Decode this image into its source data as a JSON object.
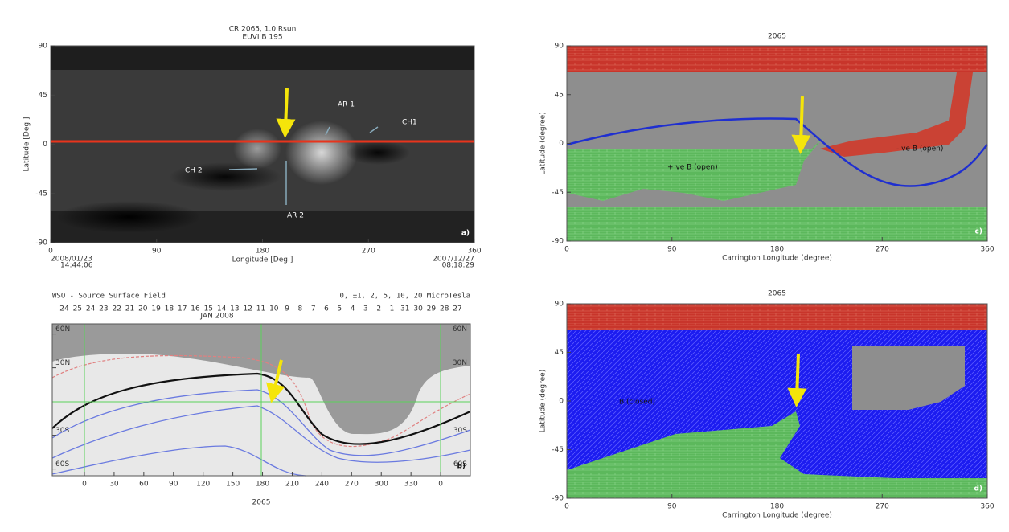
{
  "chart_data": [
    {
      "type": "map",
      "title": "CR 2065, 1.0 Rsun",
      "subtitle": "EUVI B 195",
      "x_label": "Longitude [Deg.]",
      "y_label": "Latitude [Deg.]",
      "xlim": [
        0,
        360
      ],
      "ylim": [
        -90,
        90
      ],
      "xticks": [
        0,
        90,
        180,
        270,
        360
      ],
      "yticks": [
        -90,
        -45,
        0,
        45,
        90
      ],
      "annotations": [
        "AR 1",
        "CH1",
        "CH 2",
        "AR 2"
      ],
      "panel_label": "a)",
      "start_date": "2008/01/23",
      "start_time": "14:44:06",
      "end_date": "2007/12/27",
      "end_time": "08:18:29"
    },
    {
      "type": "map",
      "title": "WSO - Source Surface Field",
      "subtitle": "0, ±1, 2, 5, 10, 20 MicroTesla",
      "x_label": "2065",
      "month_label": "JAN 2008",
      "day_labels": [
        "24",
        "25",
        "24",
        "23",
        "22",
        "21",
        "20",
        "19",
        "18",
        "17",
        "16",
        "15",
        "14",
        "13",
        "12",
        "11",
        "10",
        "9",
        "8",
        "7",
        "6",
        "5",
        "4",
        "3",
        "2",
        "1",
        "31",
        "30",
        "29",
        "28",
        "27"
      ],
      "xlim": [
        -32.5,
        390
      ],
      "ylim": [
        -66,
        69
      ],
      "xticks": [
        0,
        30,
        60,
        90,
        120,
        150,
        180,
        210,
        240,
        270,
        300,
        330,
        {
          "value": 360,
          "label": "0"
        }
      ],
      "yticks": [
        {
          "value": -60,
          "label": "60S"
        },
        {
          "value": -30,
          "label": "30S"
        },
        {
          "value": 30,
          "label": "30N"
        },
        {
          "value": 60,
          "label": "60N"
        }
      ],
      "panel_label": "b)"
    },
    {
      "type": "map",
      "title": "2065",
      "x_label": "Carrington Longitude (degree)",
      "y_label": "Latitude (degree)",
      "xlim": [
        0,
        360
      ],
      "ylim": [
        -90,
        90
      ],
      "xticks": [
        0,
        90,
        180,
        270,
        360
      ],
      "yticks": [
        -90,
        -45,
        0,
        45,
        90
      ],
      "annotations": [
        "- ve B (open)",
        "+ ve B (open)"
      ],
      "panel_label": "c)"
    },
    {
      "type": "map",
      "title": "2065",
      "x_label": "Carrington Longitude (degree)",
      "y_label": "Latitude (degree)",
      "xlim": [
        0,
        360
      ],
      "ylim": [
        -90,
        90
      ],
      "xticks": [
        0,
        90,
        180,
        270,
        360
      ],
      "yticks": [
        -90,
        -45,
        0,
        45,
        90
      ],
      "annotations": [
        "B (closed)"
      ],
      "panel_label": "d)"
    }
  ]
}
